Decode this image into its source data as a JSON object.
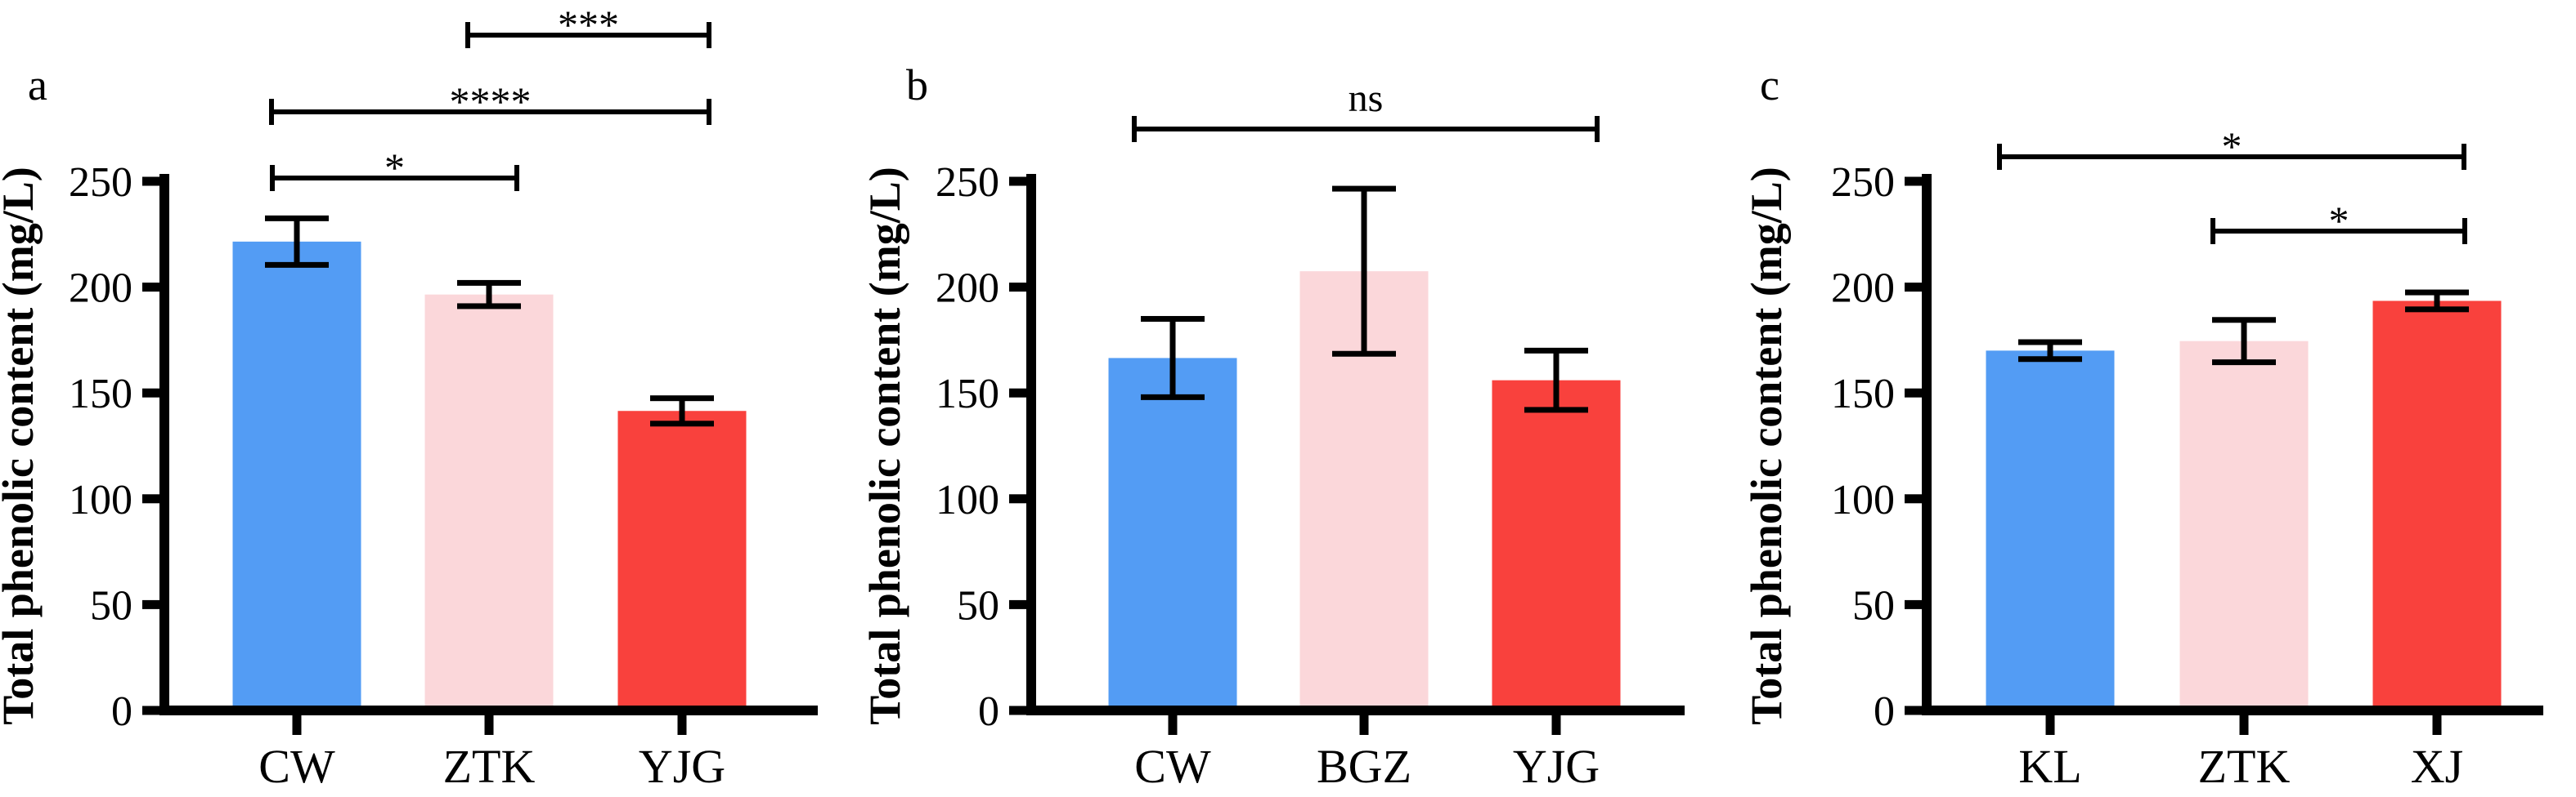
{
  "figure": {
    "background": "#ffffff",
    "axis_color": "#000000",
    "panel_labels": [
      "a",
      "b",
      "c"
    ]
  },
  "chart_data": [
    {
      "panel": "a",
      "type": "bar",
      "ylabel": "Total phenolic content (mg/L)",
      "categories": [
        "CW",
        "ZTK",
        "YJG"
      ],
      "values": [
        221.5,
        196.5,
        141.5
      ],
      "errors": [
        11,
        5.5,
        6
      ],
      "bar_colors": [
        "#539CF4",
        "#FBD7DA",
        "#F9413D"
      ],
      "yticks": [
        0,
        50,
        100,
        150,
        200,
        250
      ],
      "ylim": [
        0,
        250
      ],
      "grid": false,
      "legend": null,
      "significance": [
        {
          "from": "CW",
          "to": "ZTK",
          "label": "*"
        },
        {
          "from": "CW",
          "to": "YJG",
          "label": "****"
        },
        {
          "from": "ZTK",
          "to": "YJG",
          "label": "***"
        }
      ]
    },
    {
      "panel": "b",
      "type": "bar",
      "ylabel": "Total phenolic content (mg/L)",
      "categories": [
        "CW",
        "BGZ",
        "YJG"
      ],
      "values": [
        166.5,
        207.5,
        156
      ],
      "errors": [
        18.5,
        39,
        14
      ],
      "bar_colors": [
        "#539CF4",
        "#FBD7DA",
        "#F9413D"
      ],
      "yticks": [
        0,
        50,
        100,
        150,
        200,
        250
      ],
      "ylim": [
        0,
        250
      ],
      "grid": false,
      "legend": null,
      "significance": [
        {
          "from": "CW",
          "to": "YJG",
          "label": "ns"
        }
      ]
    },
    {
      "panel": "c",
      "type": "bar",
      "ylabel": "Total phenolic content (mg/L)",
      "categories": [
        "KL",
        "ZTK",
        "XJ"
      ],
      "values": [
        170,
        174.5,
        193.5
      ],
      "errors": [
        4,
        10,
        4
      ],
      "bar_colors": [
        "#539CF4",
        "#FBD7DA",
        "#F9413D"
      ],
      "yticks": [
        0,
        50,
        100,
        150,
        200,
        250
      ],
      "ylim": [
        0,
        250
      ],
      "grid": false,
      "legend": null,
      "significance": [
        {
          "from": "KL",
          "to": "XJ",
          "label": "*"
        },
        {
          "from": "ZTK",
          "to": "XJ",
          "label": "*"
        }
      ]
    }
  ]
}
